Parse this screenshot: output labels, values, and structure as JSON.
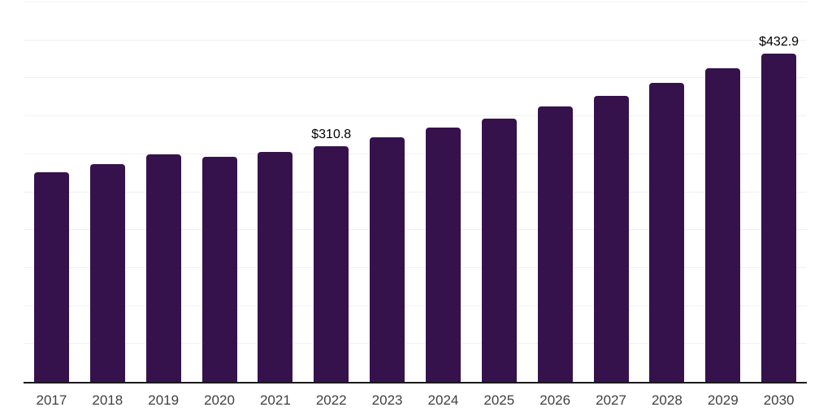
{
  "chart_data": {
    "type": "bar",
    "title": "",
    "xlabel": "",
    "ylabel": "",
    "categories": [
      "2017",
      "2018",
      "2019",
      "2020",
      "2021",
      "2022",
      "2023",
      "2024",
      "2025",
      "2026",
      "2027",
      "2028",
      "2029",
      "2030"
    ],
    "values": [
      276,
      287,
      300,
      297,
      303,
      310.8,
      322,
      335,
      347,
      363,
      377,
      394,
      413,
      432.9
    ],
    "data_labels": [
      "",
      "",
      "",
      "",
      "",
      "$310.8",
      "",
      "",
      "",
      "",
      "",
      "",
      "",
      "$432.9"
    ],
    "ylim": [
      0,
      500
    ],
    "gridline_step": 50,
    "grid": "horizontal",
    "legend": "none",
    "colors": {
      "bar": "#36124d",
      "gridline": "#f0f0f0",
      "axis_line": "#1a1a1a",
      "value_label_text": "#000000",
      "year_label_text": "#404040",
      "background": "#ffffff"
    }
  }
}
